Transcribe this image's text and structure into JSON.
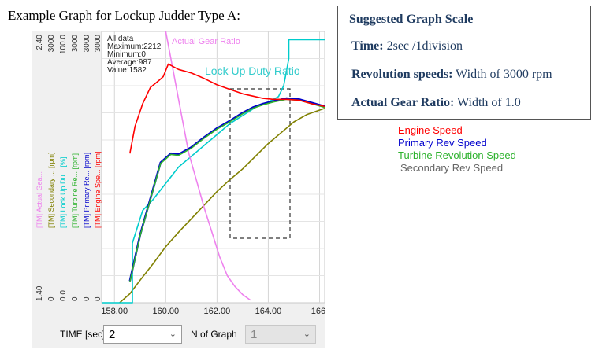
{
  "heading": "Example Graph for Lockup Judder Type A:",
  "scale_box": {
    "title": "Suggested Graph Scale",
    "lines": [
      {
        "label": "Time:",
        "value": "2sec /1division"
      },
      {
        "label": "Revolution speeds:",
        "value": "Width of 3000 rpm"
      },
      {
        "label": "Actual Gear Ratio:",
        "value": "Width of 1.0"
      }
    ]
  },
  "side_legend": [
    {
      "name": "Engine Speed",
      "color": "#ff0000"
    },
    {
      "name": "Primary Rev Speed",
      "color": "#0000cc"
    },
    {
      "name": "Turbine Revolution Speed",
      "color": "#2db22d"
    },
    {
      "name": "Secondary Rev Speed",
      "color": "#666666"
    }
  ],
  "stats": {
    "lines": [
      "All data",
      "Maximum:2212",
      "Minimum:0",
      "Average:987",
      "Value:1582"
    ]
  },
  "annotations": {
    "gear_ratio_label": "Actual Gear Ratio",
    "duty_ratio_label": "Lock Up Duty Ratio"
  },
  "axis_columns": [
    {
      "label": "[TM] Actual Gea...",
      "top": "2.40",
      "bottom": "1.40",
      "color": "#ee82ee"
    },
    {
      "label": "[TM] Secondary ... [rpm]",
      "top": "3000",
      "bottom": "0",
      "color": "#808000"
    },
    {
      "label": "[TM] Lock Up Du... [%]",
      "top": "100.0",
      "bottom": "0.0",
      "color": "#00cccc"
    },
    {
      "label": "[TM] Turbine Re... [rpm]",
      "top": "3000",
      "bottom": "0",
      "color": "#2db22d"
    },
    {
      "label": "[TM] Primary Re... [rpm]",
      "top": "3000",
      "bottom": "0",
      "color": "#0000cc"
    },
    {
      "label": "[TM] Engine Spe... [rpm]",
      "top": "3000",
      "bottom": "0",
      "color": "#ff0000"
    }
  ],
  "controls": {
    "time_label": "TIME [sec]",
    "time_value": "2",
    "n_graph_label": "N of Graph",
    "n_graph_value": "1"
  },
  "chart_data": {
    "type": "line",
    "xlabel": "TIME [sec]",
    "xlim": [
      157.5,
      166.2
    ],
    "xticks": [
      "158.00",
      "160.00",
      "162.00",
      "164.00",
      "166."
    ],
    "ylim": [
      0,
      3000
    ],
    "grid": true,
    "series": [
      {
        "name": "[TM] Engine Spe... [rpm]",
        "color": "#ff0000",
        "x": [
          158.6,
          158.8,
          159.1,
          159.4,
          159.7,
          159.9,
          160.1,
          160.5,
          161.0,
          161.5,
          162.0,
          162.5,
          163.0,
          163.4,
          163.8,
          164.2,
          164.7,
          165.2,
          165.7,
          166.2
        ],
        "y": [
          1650,
          1950,
          2200,
          2380,
          2450,
          2500,
          2640,
          2580,
          2540,
          2480,
          2410,
          2360,
          2310,
          2285,
          2260,
          2250,
          2250,
          2240,
          2200,
          2170
        ]
      },
      {
        "name": "[TM] Primary Re... [rpm]",
        "color": "#0000cc",
        "x": [
          158.6,
          159.0,
          159.4,
          159.8,
          160.2,
          160.5,
          161.0,
          161.5,
          162.0,
          162.5,
          163.0,
          163.4,
          163.8,
          164.2,
          164.7,
          165.2,
          165.7,
          166.2
        ],
        "y": [
          240,
          750,
          1150,
          1550,
          1650,
          1640,
          1720,
          1830,
          1930,
          2010,
          2100,
          2160,
          2200,
          2230,
          2260,
          2250,
          2210,
          2170
        ]
      },
      {
        "name": "[TM] Turbine Re... [rpm]",
        "color": "#2db22d",
        "x": [
          158.6,
          159.0,
          159.4,
          159.8,
          160.2,
          160.5,
          161.0,
          161.5,
          162.0,
          162.5,
          163.0,
          163.4,
          163.8,
          164.2,
          164.7,
          165.2,
          165.7,
          166.2
        ],
        "y": [
          230,
          740,
          1140,
          1540,
          1640,
          1630,
          1710,
          1820,
          1920,
          2000,
          2090,
          2150,
          2190,
          2220,
          2250,
          2240,
          2200,
          2160
        ]
      },
      {
        "name": "[TM] Lock Up Du... [%]",
        "color": "#00cccc",
        "x": [
          157.5,
          158.7,
          158.7,
          159.1,
          159.5,
          160.0,
          160.5,
          161.0,
          161.5,
          162.0,
          162.5,
          163.0,
          163.5,
          164.0,
          164.4,
          164.6,
          164.8,
          164.8,
          166.2
        ],
        "y": [
          0,
          0,
          22,
          34,
          38,
          44,
          50,
          54,
          58,
          62,
          66,
          69,
          72,
          74,
          76,
          80,
          90,
          97,
          97
        ]
      },
      {
        "name": "[TM] Secondary ... [rpm]",
        "color": "#808000",
        "x": [
          158.2,
          158.6,
          159.0,
          159.5,
          160.0,
          160.5,
          161.0,
          161.5,
          162.0,
          162.5,
          163.0,
          163.5,
          164.0,
          164.5,
          165.0,
          165.5,
          166.2
        ],
        "y": [
          0,
          100,
          250,
          430,
          620,
          780,
          930,
          1080,
          1230,
          1360,
          1480,
          1620,
          1760,
          1880,
          2000,
          2080,
          2150
        ]
      },
      {
        "name": "[TM] Actual Gea...",
        "color": "#ee82ee",
        "x": [
          160.0,
          160.3,
          160.6,
          160.9,
          161.2,
          161.5,
          161.8,
          162.1,
          162.4,
          162.7,
          163.0,
          163.3
        ],
        "y": [
          2.4,
          2.25,
          2.1,
          1.95,
          1.85,
          1.75,
          1.66,
          1.57,
          1.5,
          1.46,
          1.43,
          1.41
        ]
      }
    ]
  }
}
